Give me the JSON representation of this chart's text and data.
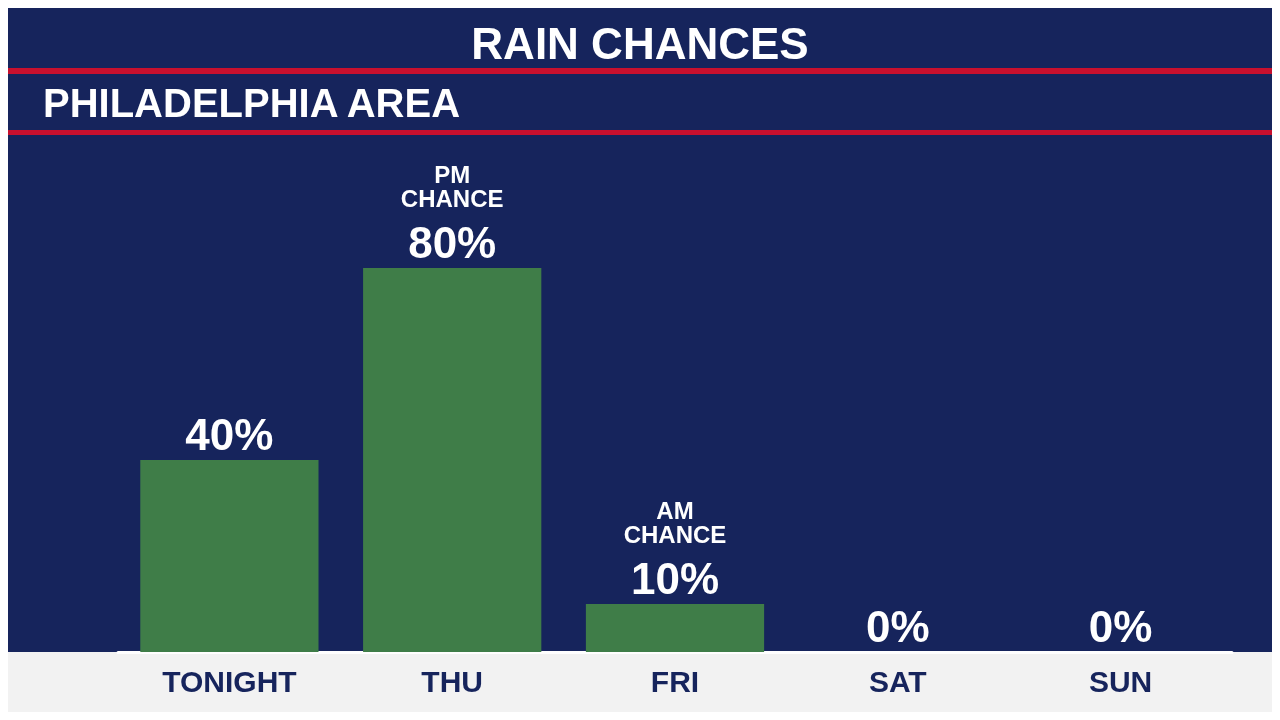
{
  "chart_data": {
    "type": "bar",
    "title": "RAIN CHANCES",
    "subtitle": "PHILADELPHIA AREA",
    "categories": [
      "TONIGHT",
      "THU",
      "FRI",
      "SAT",
      "SUN"
    ],
    "values": [
      40,
      80,
      10,
      0,
      0
    ],
    "value_labels": [
      "40%",
      "80%",
      "10%",
      "0%",
      "0%"
    ],
    "color": "#3f7d48",
    "tick_labels": "x",
    "grid": false,
    "annotations": [
      {
        "text": "PM CHANCE",
        "x": "THU",
        "y": 80
      },
      {
        "text": "AM CHANCE",
        "x": "FRI",
        "y": 10
      }
    ]
  }
}
